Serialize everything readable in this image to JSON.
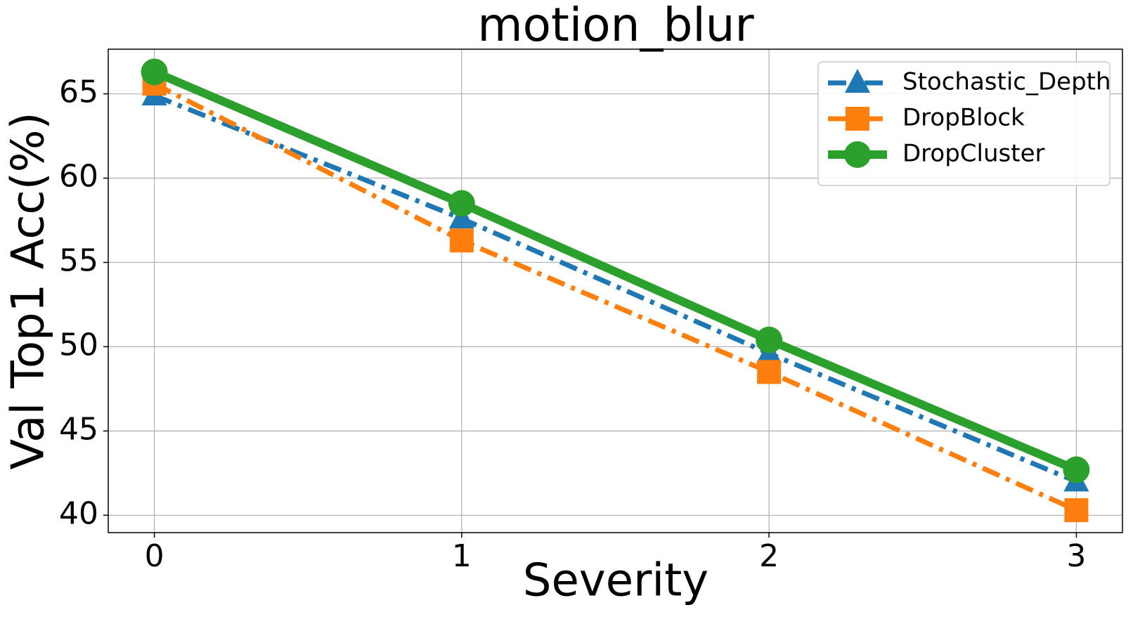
{
  "chart_data": {
    "type": "line",
    "title": "motion_blur",
    "x_label": "Severity",
    "y_label": "Val Top1 Acc(%)",
    "x": [
      0,
      1,
      2,
      3
    ],
    "series": [
      {
        "name": "Stochastic_Depth",
        "color": "#1f77b4",
        "marker": "triangle",
        "linestyle": "dashdot",
        "values": [
          64.9,
          57.6,
          49.6,
          42.0
        ]
      },
      {
        "name": "DropBlock",
        "color": "#ff7f0e",
        "marker": "square",
        "linestyle": "dashdot",
        "values": [
          65.6,
          56.3,
          48.5,
          40.3
        ]
      },
      {
        "name": "DropCluster",
        "color": "#2ca02c",
        "marker": "circle",
        "linestyle": "solid",
        "values": [
          66.3,
          58.5,
          50.4,
          42.7
        ]
      }
    ],
    "xlim": [
      -0.15,
      3.15
    ],
    "xticks": [
      0,
      1,
      2,
      3
    ],
    "ylim": [
      38.97,
      67.65
    ],
    "yticks": [
      40,
      45,
      50,
      55,
      60,
      65
    ],
    "grid": true,
    "legend": "upper right"
  }
}
